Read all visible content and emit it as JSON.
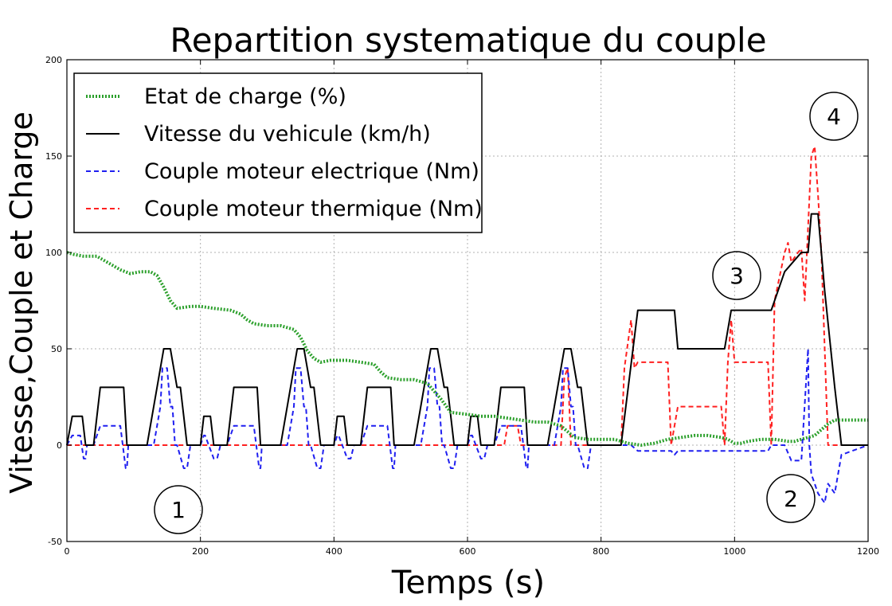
{
  "chart_data": {
    "type": "line",
    "title": "Repartition systematique du couple",
    "xlabel": "Temps (s)",
    "ylabel": "Vitesse,Couple et Charge",
    "xlim": [
      0,
      1200
    ],
    "ylim": [
      -50,
      200
    ],
    "xticks": [
      0,
      200,
      400,
      600,
      800,
      1000,
      1200
    ],
    "yticks": [
      -50,
      0,
      50,
      100,
      150,
      200
    ],
    "grid": true,
    "legend_position": "top-left",
    "series": [
      {
        "name": "Etat de charge (%)",
        "color": "#2ca02c",
        "style": "dotted-thick",
        "x": [
          0,
          10,
          25,
          45,
          60,
          80,
          95,
          110,
          125,
          135,
          145,
          155,
          165,
          185,
          200,
          220,
          245,
          260,
          270,
          280,
          300,
          320,
          340,
          350,
          360,
          370,
          380,
          395,
          420,
          440,
          460,
          470,
          480,
          500,
          520,
          540,
          550,
          560,
          575,
          600,
          620,
          640,
          660,
          680,
          700,
          720,
          730,
          740,
          760,
          780,
          800,
          820,
          840,
          860,
          880,
          900,
          920,
          940,
          960,
          980,
          990,
          1000,
          1010,
          1020,
          1040,
          1060,
          1080,
          1090,
          1100,
          1110,
          1120,
          1130,
          1140,
          1150,
          1160,
          1170,
          1200
        ],
        "values": [
          100,
          99,
          98,
          98,
          95,
          91,
          89,
          90,
          90,
          88,
          82,
          75,
          71,
          72,
          72,
          71,
          70,
          68,
          65,
          63,
          62,
          62,
          60,
          56,
          49,
          45,
          43,
          44,
          44,
          43,
          42,
          38,
          35,
          34,
          34,
          32,
          28,
          24,
          17,
          16,
          15,
          15,
          14,
          13,
          12,
          12,
          11,
          10,
          4,
          3,
          3,
          3,
          1,
          0,
          1,
          3,
          4,
          5,
          5,
          4,
          3,
          1,
          1,
          2,
          3,
          3,
          2,
          2,
          3,
          4,
          5,
          8,
          11,
          13,
          13,
          13,
          13
        ]
      },
      {
        "name": "Vitesse du vehicule (km/h)",
        "color": "#000000",
        "style": "solid",
        "x": [
          0,
          8,
          13,
          23,
          28,
          40,
          50,
          60,
          70,
          85,
          90,
          95,
          120,
          140,
          145,
          155,
          160,
          165,
          170,
          180,
          200,
          205,
          210,
          215,
          220,
          240,
          250,
          260,
          270,
          285,
          290,
          295,
          320,
          340,
          345,
          355,
          360,
          365,
          370,
          380,
          400,
          405,
          410,
          415,
          420,
          440,
          450,
          460,
          470,
          485,
          490,
          495,
          520,
          540,
          545,
          555,
          560,
          565,
          570,
          580,
          600,
          605,
          610,
          615,
          620,
          640,
          650,
          660,
          670,
          685,
          690,
          695,
          720,
          740,
          745,
          755,
          760,
          765,
          770,
          780,
          810,
          830,
          855,
          895,
          910,
          915,
          985,
          995,
          1055,
          1075,
          1100,
          1110,
          1115,
          1125,
          1135,
          1150,
          1160,
          1200
        ],
        "values": [
          0,
          15,
          15,
          15,
          0,
          0,
          30,
          30,
          30,
          30,
          0,
          0,
          0,
          40,
          50,
          50,
          40,
          30,
          30,
          0,
          0,
          15,
          15,
          15,
          0,
          0,
          30,
          30,
          30,
          30,
          0,
          0,
          0,
          40,
          50,
          50,
          40,
          30,
          30,
          0,
          0,
          15,
          15,
          15,
          0,
          0,
          30,
          30,
          30,
          30,
          0,
          0,
          0,
          40,
          50,
          50,
          40,
          30,
          30,
          0,
          0,
          15,
          15,
          15,
          0,
          0,
          30,
          30,
          30,
          30,
          0,
          0,
          0,
          40,
          50,
          50,
          40,
          30,
          30,
          0,
          0,
          0,
          70,
          70,
          70,
          50,
          50,
          70,
          70,
          90,
          100,
          100,
          120,
          120,
          80,
          30,
          0,
          0
        ]
      },
      {
        "name": "Couple moteur electrique (Nm)",
        "color": "#1f1ff0",
        "style": "dashed",
        "x": [
          0,
          8,
          10,
          20,
          25,
          28,
          30,
          40,
          50,
          55,
          60,
          80,
          88,
          90,
          92,
          95,
          130,
          140,
          143,
          150,
          155,
          158,
          162,
          165,
          175,
          180,
          185,
          200,
          205,
          207,
          220,
          225,
          230,
          240,
          250,
          255,
          260,
          280,
          288,
          290,
          292,
          295,
          330,
          340,
          343,
          350,
          355,
          358,
          362,
          365,
          375,
          380,
          385,
          400,
          405,
          407,
          420,
          425,
          430,
          440,
          450,
          455,
          460,
          480,
          488,
          490,
          492,
          495,
          530,
          540,
          543,
          550,
          555,
          558,
          562,
          565,
          575,
          580,
          585,
          600,
          605,
          607,
          620,
          625,
          630,
          640,
          650,
          655,
          660,
          680,
          688,
          690,
          692,
          695,
          730,
          740,
          743,
          750,
          755,
          758,
          762,
          765,
          775,
          780,
          785,
          810,
          830,
          845,
          855,
          860,
          905,
          910,
          915,
          920,
          985,
          995,
          1050,
          1055,
          1075,
          1085,
          1100,
          1110,
          1112,
          1115,
          1120,
          1125,
          1135,
          1140,
          1150,
          1160,
          1200
        ],
        "values": [
          0,
          5,
          5,
          5,
          -7,
          -7,
          0,
          0,
          10,
          10,
          10,
          10,
          -12,
          -12,
          0,
          0,
          0,
          20,
          40,
          40,
          20,
          20,
          0,
          0,
          -12,
          -12,
          0,
          0,
          5,
          5,
          -7,
          -7,
          0,
          0,
          10,
          10,
          10,
          10,
          -12,
          -12,
          0,
          0,
          0,
          20,
          40,
          40,
          20,
          20,
          0,
          0,
          -12,
          -12,
          0,
          0,
          5,
          5,
          -7,
          -7,
          0,
          0,
          10,
          10,
          10,
          10,
          -12,
          -12,
          0,
          0,
          0,
          20,
          40,
          40,
          20,
          20,
          0,
          0,
          -12,
          -12,
          0,
          0,
          5,
          5,
          -7,
          -7,
          0,
          0,
          10,
          10,
          10,
          10,
          -12,
          -12,
          0,
          0,
          0,
          20,
          40,
          40,
          20,
          20,
          0,
          0,
          -12,
          -12,
          0,
          0,
          0,
          0,
          -3,
          -3,
          -3,
          -5,
          -3,
          -3,
          -3,
          -3,
          -3,
          0,
          0,
          -8,
          -8,
          50,
          0,
          -15,
          -20,
          -25,
          -30,
          -20,
          -25,
          -5,
          0
        ]
      },
      {
        "name": "Couple moteur thermique (Nm)",
        "color": "#ff2020",
        "style": "dashed",
        "x": [
          0,
          655,
          660,
          675,
          680,
          740,
          745,
          750,
          755,
          830,
          835,
          845,
          850,
          855,
          865,
          900,
          905,
          915,
          915,
          980,
          985,
          990,
          995,
          1000,
          1050,
          1055,
          1060,
          1075,
          1080,
          1085,
          1095,
          1100,
          1105,
          1115,
          1120,
          1125,
          1130,
          1140,
          1200
        ],
        "values": [
          0,
          0,
          10,
          10,
          0,
          0,
          35,
          40,
          0,
          0,
          40,
          65,
          40,
          43,
          43,
          43,
          0,
          20,
          20,
          20,
          0,
          43,
          65,
          43,
          43,
          0,
          75,
          100,
          105,
          95,
          100,
          102,
          75,
          150,
          155,
          130,
          100,
          0,
          0
        ]
      }
    ],
    "annotations": [
      "1",
      "2",
      "3",
      "4"
    ]
  }
}
